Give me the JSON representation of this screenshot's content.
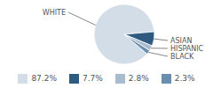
{
  "chart_data": {
    "type": "pie",
    "categories": [
      "WHITE",
      "ASIAN",
      "HISPANIC",
      "BLACK"
    ],
    "values": [
      87.2,
      7.7,
      2.8,
      2.3
    ],
    "value_labels": [
      "87.2%",
      "7.7%",
      "2.8%",
      "2.3%"
    ],
    "colors": [
      "#d3dde8",
      "#2e5a7f",
      "#a9bccf",
      "#6a8fae"
    ],
    "legend": "bottom"
  }
}
